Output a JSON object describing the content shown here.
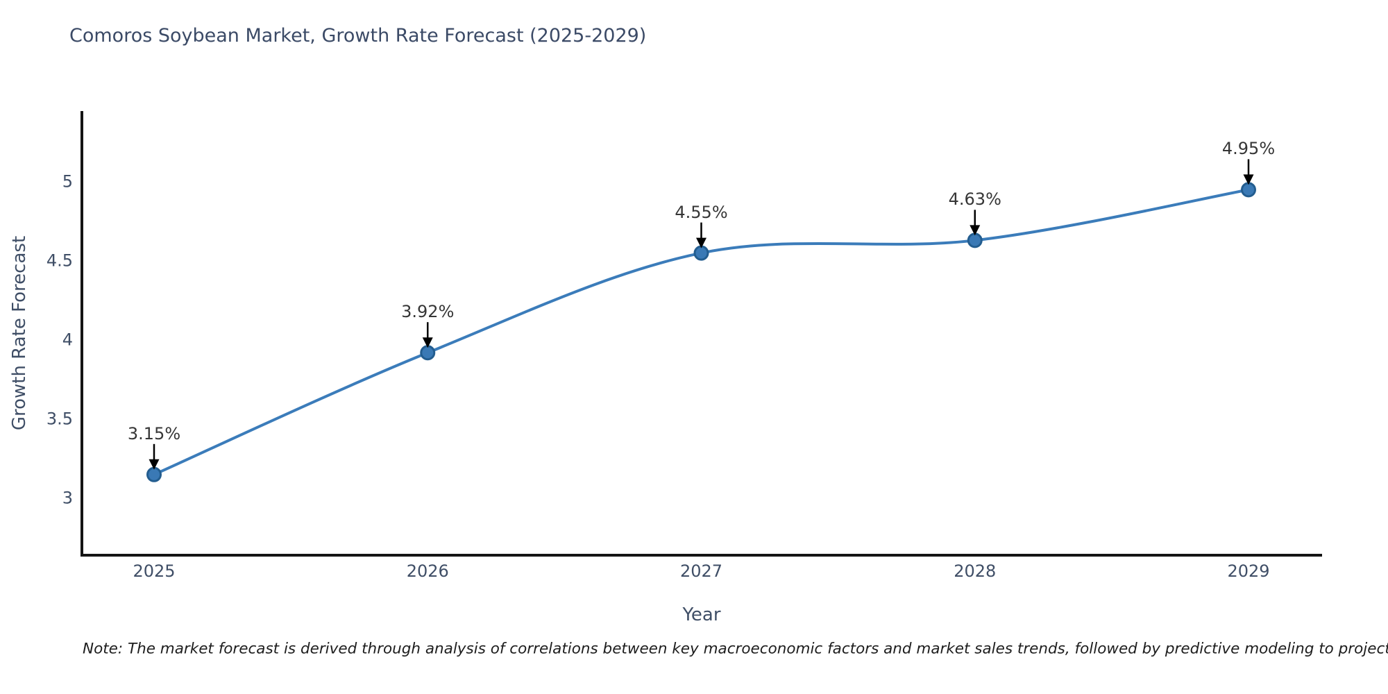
{
  "page": {
    "background": "#ffffff"
  },
  "chart_data": {
    "type": "line",
    "title": "Comoros Soybean Market, Growth Rate Forecast (2025-2029)",
    "xlabel": "Year",
    "ylabel": "Growth Rate Forecast",
    "x": [
      2025,
      2026,
      2027,
      2028,
      2029
    ],
    "y": [
      3.15,
      3.92,
      4.55,
      4.63,
      4.95
    ],
    "point_labels": [
      "3.15%",
      "3.92%",
      "4.55%",
      "4.63%",
      "4.95%"
    ],
    "xtick_labels": [
      "2025",
      "2026",
      "2027",
      "2028",
      "2029"
    ],
    "ytick_values": [
      3,
      3.5,
      4,
      4.5,
      5
    ],
    "ytick_labels": [
      "3",
      "3.5",
      "4",
      "4.5",
      "5"
    ],
    "xlim": [
      2024.74,
      2029.27
    ],
    "ylim": [
      2.64,
      5.46
    ],
    "grid": false,
    "legend": "none",
    "smooth": true,
    "line_color": "#3b7cba",
    "marker_fill": "#3a79b5",
    "marker_edge": "#235d8f",
    "spine_color": "#141414",
    "annotation_arrow_color": "#000000"
  },
  "note": {
    "text": "Note: The market forecast is derived through analysis of correlations between key macroeconomic factors and market sales trends, followed by predictive modeling to project future sales"
  }
}
